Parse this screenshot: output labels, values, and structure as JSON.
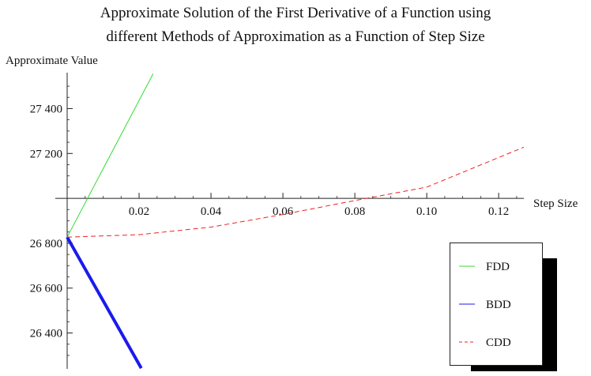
{
  "chart_data": {
    "type": "line",
    "title_lines": [
      "Approximate Solution of the First Derivative of a Function using",
      "different Methods of Approximation as a Function of Step Size"
    ],
    "ylabel": "Approximate Value",
    "xlabel": "Step Size",
    "xlim": [
      0,
      0.127
    ],
    "ylim": [
      26240,
      27560
    ],
    "x_axis_crosses_y_at": 27000,
    "x_ticks": [
      0.02,
      0.04,
      0.06,
      0.08,
      0.1,
      0.12
    ],
    "x_tick_labels": [
      "0.02",
      "0.04",
      "0.06",
      "0.08",
      "0.10",
      "0.12"
    ],
    "y_ticks": [
      26400,
      26600,
      26800,
      27200,
      27400
    ],
    "y_tick_labels": [
      "26 400",
      "26 600",
      "26 800",
      "27 200",
      "27 400"
    ],
    "grid": false,
    "legend_position": "bottom-right",
    "series": [
      {
        "name": "FDD",
        "color": "#33dd33",
        "width": 1,
        "dash": false,
        "x": [
          0,
          0.0239
        ],
        "y": [
          26827,
          27555
        ]
      },
      {
        "name": "BDD",
        "color": "#1a1aee",
        "width": 4,
        "dash": false,
        "x": [
          0,
          0.0206
        ],
        "y": [
          26827,
          26243
        ]
      },
      {
        "name": "CDD",
        "color": "#ee2222",
        "width": 1,
        "dash": true,
        "x": [
          0,
          0.02,
          0.04,
          0.06,
          0.08,
          0.1,
          0.127
        ],
        "y": [
          26827,
          26838,
          26872,
          26928,
          26990,
          27050,
          27228
        ]
      }
    ]
  }
}
